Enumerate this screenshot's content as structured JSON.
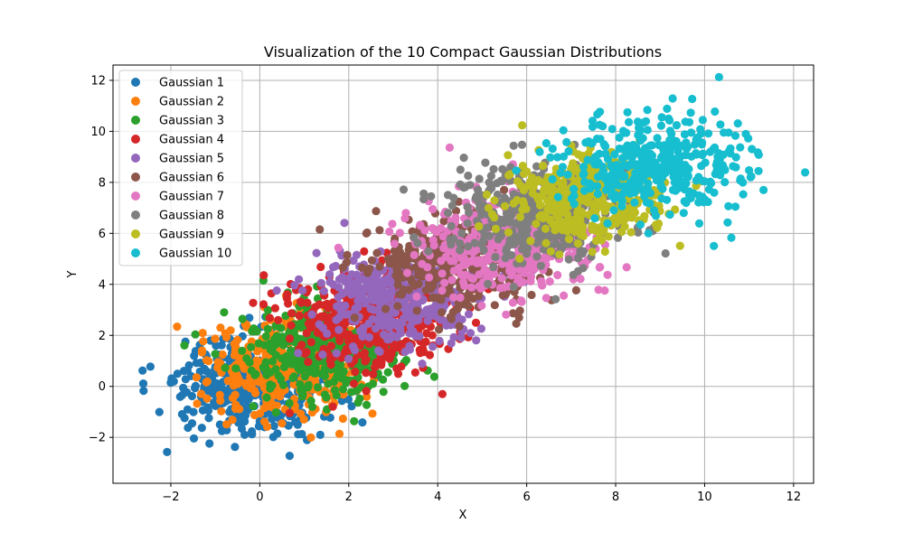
{
  "chart_data": {
    "type": "scatter",
    "title": "Visualization of the 10 Compact Gaussian Distributions",
    "xlabel": "X",
    "ylabel": "Y",
    "xlim": [
      -3.3,
      12.45
    ],
    "ylim": [
      -3.8,
      12.6
    ],
    "xticks": [
      -2,
      0,
      2,
      4,
      6,
      8,
      10,
      12
    ],
    "yticks": [
      -2,
      0,
      2,
      4,
      6,
      8,
      10,
      12
    ],
    "xtick_labels": [
      "−2",
      "0",
      "2",
      "4",
      "6",
      "8",
      "10",
      "12"
    ],
    "ytick_labels": [
      "−2",
      "0",
      "2",
      "4",
      "6",
      "8",
      "10",
      "12"
    ],
    "grid": true,
    "legend_position": "upper-left",
    "series": [
      {
        "name": "Gaussian 1",
        "color": "#1f77b4",
        "mean": [
          -0.2,
          0.0
        ],
        "std": [
          0.85,
          0.95
        ],
        "points": 400
      },
      {
        "name": "Gaussian 2",
        "color": "#ff7f0e",
        "mean": [
          0.6,
          0.8
        ],
        "std": [
          0.9,
          0.95
        ],
        "points": 400
      },
      {
        "name": "Gaussian 3",
        "color": "#2ca02c",
        "mean": [
          1.5,
          1.4
        ],
        "std": [
          0.9,
          0.9
        ],
        "points": 400
      },
      {
        "name": "Gaussian 4",
        "color": "#d62728",
        "mean": [
          2.5,
          2.6
        ],
        "std": [
          0.95,
          0.95
        ],
        "points": 400
      },
      {
        "name": "Gaussian 5",
        "color": "#9467bd",
        "mean": [
          3.1,
          3.4
        ],
        "std": [
          0.9,
          0.9
        ],
        "points": 400
      },
      {
        "name": "Gaussian 6",
        "color": "#8c564b",
        "mean": [
          4.4,
          4.8
        ],
        "std": [
          0.95,
          0.95
        ],
        "points": 400
      },
      {
        "name": "Gaussian 7",
        "color": "#e377c2",
        "mean": [
          5.5,
          5.5
        ],
        "std": [
          0.95,
          0.95
        ],
        "points": 400
      },
      {
        "name": "Gaussian 8",
        "color": "#7f7f7f",
        "mean": [
          6.3,
          6.7
        ],
        "std": [
          0.95,
          0.95
        ],
        "points": 400
      },
      {
        "name": "Gaussian 9",
        "color": "#bcbd22",
        "mean": [
          7.2,
          7.4
        ],
        "std": [
          0.9,
          0.9
        ],
        "points": 400
      },
      {
        "name": "Gaussian 10",
        "color": "#17becf",
        "mean": [
          9.0,
          8.7
        ],
        "std": [
          1.0,
          0.95
        ],
        "points": 400
      }
    ]
  }
}
